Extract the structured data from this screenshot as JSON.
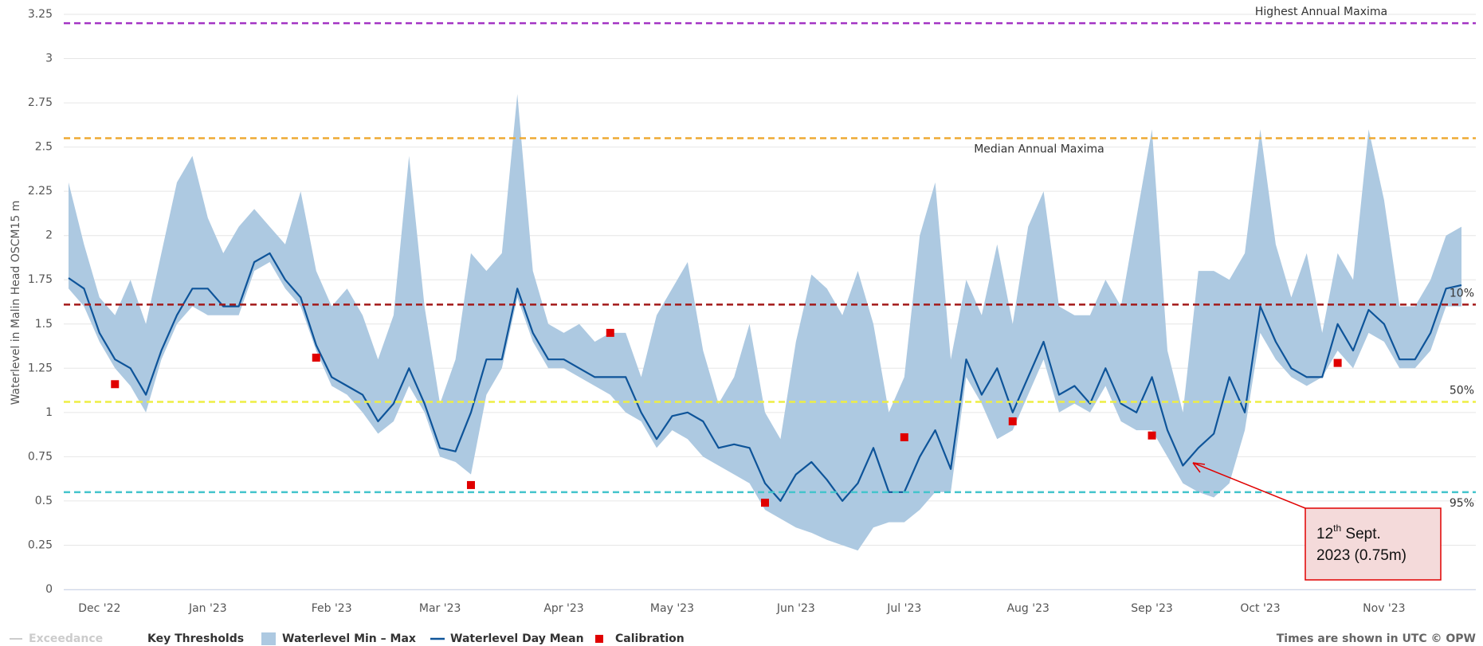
{
  "chart_data": {
    "type": "range-line",
    "y_axis_label": "Waterlevel in Malin Head OSCM15 m",
    "ylim": [
      0,
      3.25
    ],
    "yticks": [
      0,
      0.25,
      0.5,
      0.75,
      1,
      1.25,
      1.5,
      1.75,
      2,
      2.25,
      2.5,
      2.75,
      3,
      3.25
    ],
    "grid": true,
    "categories": [
      null,
      null,
      "Dec '22",
      null,
      null,
      null,
      null,
      null,
      null,
      "Jan '23",
      null,
      null,
      null,
      null,
      null,
      null,
      null,
      "Feb '23",
      null,
      null,
      null,
      null,
      null,
      null,
      "Mar '23",
      null,
      null,
      null,
      null,
      null,
      null,
      null,
      "Apr '23",
      null,
      null,
      null,
      null,
      null,
      null,
      "May '23",
      null,
      null,
      null,
      null,
      null,
      null,
      null,
      "Jun '23",
      null,
      null,
      null,
      null,
      null,
      null,
      "Jul '23",
      null,
      null,
      null,
      null,
      null,
      null,
      null,
      "Aug '23",
      null,
      null,
      null,
      null,
      null,
      null,
      null,
      "Sep '23",
      null,
      null,
      null,
      null,
      null,
      null,
      "Oct '23",
      null,
      null,
      null,
      null,
      null,
      null,
      null,
      "Nov '23",
      null,
      null,
      null,
      null,
      null
    ],
    "series": [
      {
        "name": "Waterlevel Min – Max",
        "color": "#adc9e1",
        "low": [
          1.7,
          1.6,
          1.4,
          1.25,
          1.15,
          1.0,
          1.3,
          1.5,
          1.6,
          1.55,
          1.55,
          1.55,
          1.8,
          1.85,
          1.7,
          1.6,
          1.35,
          1.15,
          1.1,
          1.0,
          0.88,
          0.95,
          1.15,
          1.0,
          0.75,
          0.72,
          0.65,
          1.1,
          1.25,
          1.65,
          1.4,
          1.25,
          1.25,
          1.2,
          1.15,
          1.1,
          1.0,
          0.95,
          0.8,
          0.9,
          0.85,
          0.75,
          0.7,
          0.65,
          0.6,
          0.45,
          0.4,
          0.35,
          0.32,
          0.28,
          0.25,
          0.22,
          0.35,
          0.38,
          0.38,
          0.45,
          0.55,
          0.55,
          1.2,
          1.05,
          0.85,
          0.9,
          1.1,
          1.3,
          1.0,
          1.05,
          1.0,
          1.15,
          0.95,
          0.9,
          0.9,
          0.75,
          0.6,
          0.55,
          0.52,
          0.6,
          0.9,
          1.45,
          1.3,
          1.2,
          1.15,
          1.2,
          1.35,
          1.25,
          1.45,
          1.4,
          1.25,
          1.25,
          1.35,
          1.6,
          1.6
        ],
        "high": [
          2.3,
          1.95,
          1.65,
          1.55,
          1.75,
          1.5,
          1.9,
          2.3,
          2.45,
          2.1,
          1.9,
          2.05,
          2.15,
          2.05,
          1.95,
          2.25,
          1.8,
          1.6,
          1.7,
          1.55,
          1.3,
          1.55,
          2.45,
          1.6,
          1.05,
          1.3,
          1.9,
          1.8,
          1.9,
          2.8,
          1.8,
          1.5,
          1.45,
          1.5,
          1.4,
          1.45,
          1.45,
          1.2,
          1.55,
          1.7,
          1.85,
          1.35,
          1.05,
          1.2,
          1.5,
          1.0,
          0.85,
          1.4,
          1.78,
          1.7,
          1.55,
          1.8,
          1.5,
          1.0,
          1.2,
          2.0,
          2.3,
          1.3,
          1.75,
          1.55,
          1.95,
          1.5,
          2.05,
          2.25,
          1.6,
          1.55,
          1.55,
          1.75,
          1.6,
          2.1,
          2.6,
          1.35,
          1.0,
          1.8,
          1.8,
          1.75,
          1.9,
          2.6,
          1.95,
          1.65,
          1.9,
          1.45,
          1.9,
          1.75,
          2.6,
          2.2,
          1.6,
          1.6,
          1.75,
          2.0,
          2.05
        ]
      },
      {
        "name": "Waterlevel Day Mean",
        "color": "#0e5499",
        "values": [
          1.76,
          1.7,
          1.45,
          1.3,
          1.25,
          1.1,
          1.35,
          1.55,
          1.7,
          1.7,
          1.6,
          1.6,
          1.85,
          1.9,
          1.75,
          1.65,
          1.38,
          1.2,
          1.15,
          1.1,
          0.95,
          1.05,
          1.25,
          1.05,
          0.8,
          0.78,
          1.0,
          1.3,
          1.3,
          1.7,
          1.45,
          1.3,
          1.3,
          1.25,
          1.2,
          1.2,
          1.2,
          1.0,
          0.85,
          0.98,
          1.0,
          0.95,
          0.8,
          0.82,
          0.8,
          0.6,
          0.5,
          0.65,
          0.72,
          0.62,
          0.5,
          0.6,
          0.8,
          0.55,
          0.55,
          0.75,
          0.9,
          0.68,
          1.3,
          1.1,
          1.25,
          1.0,
          1.2,
          1.4,
          1.1,
          1.15,
          1.05,
          1.25,
          1.05,
          1.0,
          1.2,
          0.9,
          0.7,
          0.8,
          0.88,
          1.2,
          1.0,
          1.6,
          1.4,
          1.25,
          1.2,
          1.2,
          1.5,
          1.35,
          1.58,
          1.5,
          1.3,
          1.3,
          1.45,
          1.7,
          1.72
        ]
      },
      {
        "name": "Calibration",
        "color": "#e00000",
        "values": [
          null,
          null,
          null,
          1.16,
          null,
          null,
          null,
          null,
          null,
          null,
          null,
          null,
          null,
          null,
          null,
          null,
          1.31,
          null,
          null,
          null,
          null,
          null,
          null,
          null,
          null,
          null,
          0.59,
          null,
          null,
          null,
          null,
          null,
          null,
          null,
          null,
          1.45,
          null,
          null,
          null,
          null,
          null,
          null,
          null,
          null,
          null,
          0.49,
          null,
          null,
          null,
          null,
          null,
          null,
          null,
          null,
          0.86,
          null,
          null,
          null,
          null,
          null,
          null,
          0.95,
          null,
          null,
          null,
          null,
          null,
          null,
          null,
          null,
          0.87,
          null,
          null,
          null,
          null,
          null,
          null,
          null,
          null,
          null,
          null,
          null,
          1.28,
          null,
          null,
          null,
          null,
          null,
          null,
          null,
          null
        ]
      }
    ],
    "hidden_series": [
      {
        "name": "Exceedance",
        "color": "#cccccc"
      }
    ],
    "thresholds": {
      "name": "Key Thresholds",
      "lines": [
        {
          "name": "Highest Annual Maxima",
          "value": 3.2,
          "color": "#a334c4"
        },
        {
          "name": "Median Annual Maxima",
          "value": 2.55,
          "color": "#eeaa33"
        },
        {
          "name": "10%",
          "value": 1.61,
          "color": "#a31a1a"
        },
        {
          "name": "50%",
          "value": 1.06,
          "color": "#eeee44"
        },
        {
          "name": "95%",
          "value": 0.55,
          "color": "#44c4cc"
        }
      ]
    },
    "annotation": {
      "day": "12",
      "suffix": "th",
      "line1": " Sept.",
      "line2": "2023 (0.75m)"
    },
    "credit": "Times are shown in UTC © OPW"
  }
}
